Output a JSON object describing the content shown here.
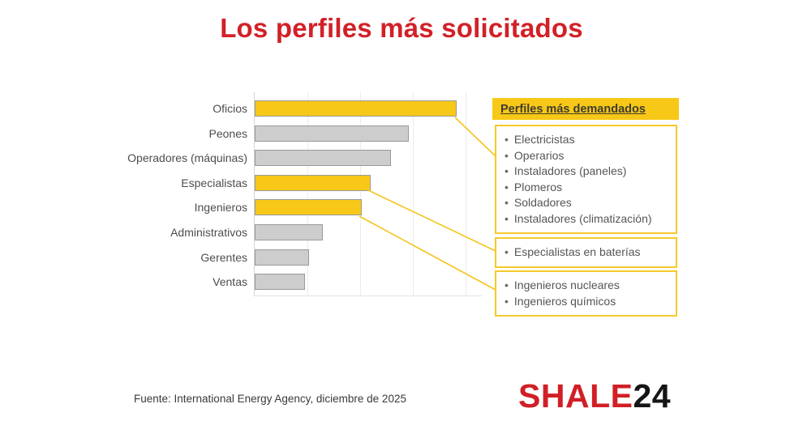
{
  "page": {
    "title": "Los perfiles más solicitados",
    "source": "Fuente: International Energy Agency, diciembre de 2025",
    "logo": {
      "primary": "SHALE",
      "secondary": "24"
    }
  },
  "colors": {
    "title_red": "#D22027",
    "accent_yellow": "#F7C817",
    "bar_gray": "#CDCDCD",
    "bar_border": "#9a9a9a",
    "box_border_yellow": "#F7C92B",
    "text_gray": "#555555",
    "logo_red": "#D11F26",
    "logo_dark": "#151515"
  },
  "chart_data": {
    "type": "bar",
    "orientation": "horizontal",
    "title": "Los perfiles más solicitados",
    "categories": [
      "Oficios",
      "Peones",
      "Operadores (máquinas)",
      "Especialistas",
      "Ingenieros",
      "Administrativos",
      "Gerentes",
      "Ventas"
    ],
    "values": [
      89,
      68,
      60,
      51,
      47,
      30,
      24,
      22
    ],
    "value_units": "percent of axis max (estimated from bar lengths; axis has no tick labels)",
    "highlight_flags": [
      true,
      false,
      false,
      true,
      true,
      false,
      false,
      false
    ],
    "highlighted_categories": [
      "Oficios",
      "Especialistas",
      "Ingenieros"
    ],
    "xlabel": "",
    "ylabel": "",
    "xlim": [
      0,
      100
    ],
    "grid": true,
    "legend": false
  },
  "callouts": {
    "header": "Perfiles más demandados",
    "bullet": "•",
    "boxes": [
      {
        "connects_to": "Oficios",
        "items": [
          "Electricistas",
          "Operarios",
          "Instaladores (paneles)",
          "Plomeros",
          "Soldadores",
          "Instaladores (climatización)"
        ]
      },
      {
        "connects_to": "Especialistas",
        "items": [
          "Especialistas en baterías"
        ]
      },
      {
        "connects_to": "Ingenieros",
        "items": [
          "Ingenieros nucleares",
          "Ingenieros químicos"
        ]
      }
    ]
  }
}
